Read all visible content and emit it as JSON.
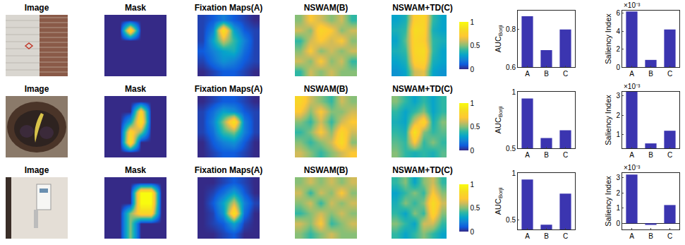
{
  "chart_data": [
    {
      "type": "image",
      "title": "Image"
    },
    {
      "type": "heatmap",
      "title": "Mask",
      "tick_labels": false,
      "colorbar_range": [
        0,
        1
      ],
      "cells": [
        [
          0,
          0,
          0,
          0,
          0,
          0
        ],
        [
          0,
          0,
          0.9,
          0,
          0,
          0
        ],
        [
          0,
          0,
          0,
          0,
          0,
          0
        ],
        [
          0,
          0,
          0,
          0,
          0,
          0
        ],
        [
          0,
          0,
          0,
          0,
          0,
          0
        ],
        [
          0,
          0,
          0,
          0,
          0,
          0
        ]
      ]
    },
    {
      "type": "heatmap",
      "title": "Fixation Maps(A)",
      "tick_labels": false,
      "colorbar_range": [
        0,
        1
      ],
      "cells": [
        [
          0.05,
          0.1,
          0.2,
          0.1,
          0.05,
          0
        ],
        [
          0.05,
          0.2,
          0.9,
          0.3,
          0.1,
          0.05
        ],
        [
          0.05,
          0.3,
          0.6,
          0.4,
          0.2,
          0.05
        ],
        [
          0.1,
          0.2,
          0.3,
          0.35,
          0.15,
          0.05
        ],
        [
          0.05,
          0.15,
          0.25,
          0.2,
          0.1,
          0.05
        ],
        [
          0,
          0.05,
          0.1,
          0.1,
          0.05,
          0
        ]
      ]
    },
    {
      "type": "heatmap",
      "title": "NSWAM(B)",
      "tick_labels": false,
      "colorbar_range": [
        0,
        1
      ],
      "cells": [
        [
          0.5,
          0.7,
          0.6,
          0.5,
          0.6,
          0.4
        ],
        [
          0.6,
          0.5,
          0.8,
          0.7,
          0.5,
          0.6
        ],
        [
          0.4,
          0.6,
          0.7,
          0.6,
          0.7,
          0.5
        ],
        [
          0.5,
          0.7,
          0.5,
          0.6,
          0.5,
          0.6
        ],
        [
          0.6,
          0.5,
          0.7,
          0.5,
          0.6,
          0.4
        ],
        [
          0.4,
          0.6,
          0.5,
          0.6,
          0.5,
          0.5
        ]
      ]
    },
    {
      "type": "heatmap",
      "title": "NSWAM+TD(C)",
      "tick_labels": false,
      "colorbar_range": [
        0,
        1
      ],
      "colorbar_ticks": [
        0,
        0.5,
        1
      ],
      "cells": [
        [
          0.3,
          0.35,
          0.75,
          0.8,
          0.4,
          0.3
        ],
        [
          0.35,
          0.4,
          0.85,
          0.8,
          0.35,
          0.3
        ],
        [
          0.3,
          0.45,
          0.8,
          0.75,
          0.4,
          0.35
        ],
        [
          0.35,
          0.4,
          0.8,
          0.85,
          0.4,
          0.3
        ],
        [
          0.3,
          0.35,
          0.75,
          0.8,
          0.35,
          0.3
        ],
        [
          0.25,
          0.3,
          0.6,
          0.65,
          0.3,
          0.25
        ]
      ]
    },
    {
      "type": "bar",
      "y_label": "AUC",
      "y_label_sub": "Borji",
      "categories": [
        "A",
        "B",
        "C"
      ],
      "values": [
        0.87,
        0.69,
        0.8
      ],
      "color": "#3b35b0",
      "ylim": [
        0.6,
        0.9
      ],
      "yticks": [
        0.6,
        0.8
      ]
    },
    {
      "type": "bar",
      "y_label": "Saliency Index",
      "scale_label": "×10⁻³",
      "categories": [
        "A",
        "B",
        "C"
      ],
      "values": [
        6.2,
        0.8,
        4.2
      ],
      "color": "#3b35b0",
      "ylim": [
        0,
        6.3
      ],
      "yticks": [
        0,
        2,
        4,
        6
      ]
    },
    {
      "type": "image",
      "title": "Image"
    },
    {
      "type": "heatmap",
      "title": "Mask",
      "tick_labels": false,
      "colorbar_range": [
        0,
        1
      ],
      "cells": [
        [
          0,
          0,
          0,
          0,
          0,
          0
        ],
        [
          0,
          0,
          0,
          0.8,
          0,
          0
        ],
        [
          0,
          0,
          0.3,
          0.9,
          0,
          0
        ],
        [
          0,
          0,
          0.8,
          0.5,
          0,
          0
        ],
        [
          0,
          0,
          0.9,
          0,
          0,
          0
        ],
        [
          0,
          0,
          0,
          0,
          0,
          0
        ]
      ]
    },
    {
      "type": "heatmap",
      "title": "Fixation Maps(A)",
      "tick_labels": false,
      "colorbar_range": [
        0,
        1
      ],
      "cells": [
        [
          0,
          0.05,
          0.1,
          0.1,
          0.05,
          0
        ],
        [
          0.05,
          0.15,
          0.3,
          0.25,
          0.1,
          0.05
        ],
        [
          0.05,
          0.2,
          0.5,
          0.9,
          0.2,
          0.05
        ],
        [
          0.05,
          0.15,
          0.4,
          0.5,
          0.2,
          0.05
        ],
        [
          0,
          0.1,
          0.2,
          0.25,
          0.1,
          0
        ],
        [
          0,
          0.05,
          0.1,
          0.1,
          0.05,
          0
        ]
      ]
    },
    {
      "type": "heatmap",
      "title": "NSWAM(B)",
      "tick_labels": false,
      "colorbar_range": [
        0,
        1
      ],
      "cells": [
        [
          0.8,
          0.6,
          0.5,
          0.4,
          0.6,
          0.5
        ],
        [
          0.7,
          0.5,
          0.7,
          0.5,
          0.5,
          0.6
        ],
        [
          0.5,
          0.4,
          0.6,
          0.4,
          0.6,
          0.7
        ],
        [
          0.4,
          0.5,
          0.7,
          0.5,
          0.8,
          0.6
        ],
        [
          0.5,
          0.4,
          0.5,
          0.6,
          0.85,
          0.5
        ],
        [
          0.6,
          0.5,
          0.4,
          0.5,
          0.6,
          0.7
        ]
      ]
    },
    {
      "type": "heatmap",
      "title": "NSWAM+TD(C)",
      "tick_labels": false,
      "colorbar_range": [
        0,
        1
      ],
      "colorbar_ticks": [
        0,
        0.5,
        1
      ],
      "cells": [
        [
          0.5,
          0.4,
          0.3,
          0.4,
          0.3,
          0.4
        ],
        [
          0.4,
          0.3,
          0.4,
          0.5,
          0.3,
          0.4
        ],
        [
          0.35,
          0.3,
          0.6,
          0.8,
          0.35,
          0.5
        ],
        [
          0.4,
          0.35,
          0.9,
          0.5,
          0.4,
          0.45
        ],
        [
          0.45,
          0.4,
          0.7,
          0.4,
          0.5,
          0.4
        ],
        [
          0.5,
          0.4,
          0.35,
          0.4,
          0.35,
          0.45
        ]
      ]
    },
    {
      "type": "bar",
      "y_label": "AUC",
      "y_label_sub": "Borji",
      "categories": [
        "A",
        "B",
        "C"
      ],
      "values": [
        0.94,
        0.59,
        0.66
      ],
      "color": "#3b35b0",
      "ylim": [
        0.5,
        1
      ],
      "yticks": [
        0.5,
        1
      ]
    },
    {
      "type": "bar",
      "y_label": "Saliency Index",
      "scale_label": "×10⁻³",
      "categories": [
        "A",
        "B",
        "C"
      ],
      "values": [
        3.2,
        0.55,
        1.2
      ],
      "color": "#3b35b0",
      "ylim": [
        0.3,
        3.2
      ],
      "yticks": [
        1,
        2,
        3
      ]
    },
    {
      "type": "image",
      "title": "Image"
    },
    {
      "type": "heatmap",
      "title": "Mask",
      "tick_labels": false,
      "colorbar_range": [
        0,
        1
      ],
      "cells": [
        [
          0,
          0,
          0,
          0,
          0,
          0
        ],
        [
          0,
          0,
          0,
          1,
          1,
          0
        ],
        [
          0,
          0,
          0,
          1,
          1,
          0
        ],
        [
          0,
          0,
          0.5,
          0.8,
          0.8,
          0
        ],
        [
          0,
          0,
          0.5,
          0,
          0,
          0
        ],
        [
          0,
          0,
          0.5,
          0,
          0,
          0
        ]
      ]
    },
    {
      "type": "heatmap",
      "title": "Fixation Maps(A)",
      "tick_labels": false,
      "colorbar_range": [
        0,
        1
      ],
      "cells": [
        [
          0,
          0,
          0.05,
          0.1,
          0.05,
          0
        ],
        [
          0,
          0.05,
          0.15,
          0.3,
          0.1,
          0
        ],
        [
          0,
          0.1,
          0.3,
          0.6,
          0.2,
          0.05
        ],
        [
          0,
          0.05,
          0.25,
          0.9,
          0.15,
          0
        ],
        [
          0,
          0.05,
          0.1,
          0.3,
          0.05,
          0
        ],
        [
          0,
          0,
          0.05,
          0.1,
          0,
          0
        ]
      ]
    },
    {
      "type": "heatmap",
      "title": "NSWAM(B)",
      "tick_labels": false,
      "colorbar_range": [
        0,
        1
      ],
      "cells": [
        [
          0.5,
          0.6,
          0.5,
          0.6,
          0.5,
          0.6
        ],
        [
          0.6,
          0.4,
          0.6,
          0.5,
          0.7,
          0.5
        ],
        [
          0.5,
          0.6,
          0.4,
          0.6,
          0.5,
          0.6
        ],
        [
          0.4,
          0.5,
          0.6,
          0.5,
          0.6,
          0.5
        ],
        [
          0.6,
          0.5,
          0.7,
          0.4,
          0.5,
          0.6
        ],
        [
          0.5,
          0.4,
          0.5,
          0.6,
          0.5,
          0.5
        ]
      ]
    },
    {
      "type": "heatmap",
      "title": "NSWAM+TD(C)",
      "tick_labels": false,
      "colorbar_range": [
        0,
        1
      ],
      "colorbar_ticks": [
        0,
        0.5,
        1
      ],
      "cells": [
        [
          0.4,
          0.5,
          0.3,
          0.5,
          0.6,
          0.4
        ],
        [
          0.3,
          0.4,
          0.5,
          0.4,
          0.7,
          0.5
        ],
        [
          0.35,
          0.5,
          0.4,
          0.5,
          0.85,
          0.6
        ],
        [
          0.4,
          0.3,
          0.5,
          0.4,
          0.8,
          0.5
        ],
        [
          0.5,
          0.4,
          0.3,
          0.6,
          0.6,
          0.4
        ],
        [
          0.4,
          0.3,
          0.4,
          0.5,
          0.4,
          0.3
        ]
      ]
    },
    {
      "type": "bar",
      "y_label": "AUC",
      "y_label_sub": "Borji",
      "categories": [
        "A",
        "B",
        "C"
      ],
      "values": [
        0.93,
        0.45,
        0.78
      ],
      "color": "#3b35b0",
      "ylim": [
        0.4,
        1
      ],
      "yticks": [
        0.5,
        1
      ]
    },
    {
      "type": "bar",
      "y_label": "Saliency Index",
      "scale_label": "×10⁻³",
      "categories": [
        "A",
        "B",
        "C"
      ],
      "values": [
        3.2,
        -0.1,
        1.2
      ],
      "color": "#3b35b0",
      "ylim": [
        -0.4,
        3.3
      ],
      "yticks": [
        0,
        1,
        2,
        3
      ]
    }
  ]
}
